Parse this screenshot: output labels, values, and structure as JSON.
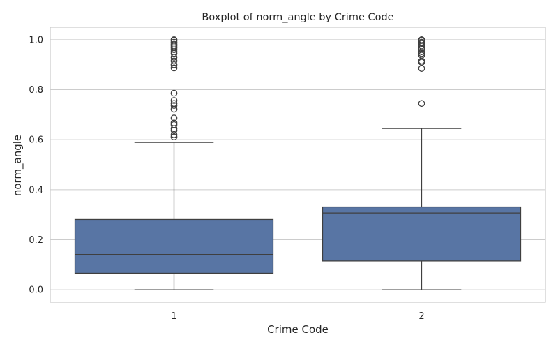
{
  "chart_data": {
    "type": "box",
    "title": "Boxplot of norm_angle by Crime Code",
    "xlabel": "Crime Code",
    "ylabel": "norm_angle",
    "ylim": [
      -0.05,
      1.05
    ],
    "yticks": [
      0.0,
      0.2,
      0.4,
      0.6,
      0.8,
      1.0
    ],
    "ytick_labels": [
      "0.0",
      "0.2",
      "0.4",
      "0.6",
      "0.8",
      "1.0"
    ],
    "categories": [
      "1",
      "2"
    ],
    "grid": true,
    "box_color": "#5875a4",
    "line_color": "#3f3f3f",
    "boxes": [
      {
        "category": "1",
        "whisker_low": 0.0,
        "q1": 0.066,
        "median": 0.141,
        "q3": 0.281,
        "whisker_high": 0.589,
        "outliers": [
          0.611,
          0.62,
          0.637,
          0.645,
          0.66,
          0.667,
          0.687,
          0.722,
          0.737,
          0.745,
          0.757,
          0.786,
          0.887,
          0.9,
          0.915,
          0.93,
          0.945,
          0.952,
          0.96,
          0.968,
          0.975,
          0.982,
          0.99,
          0.997,
          1.0
        ]
      },
      {
        "category": "2",
        "whisker_low": 0.0,
        "q1": 0.115,
        "median": 0.307,
        "q3": 0.331,
        "whisker_high": 0.645,
        "outliers": [
          0.745,
          0.885,
          0.91,
          0.915,
          0.938,
          0.945,
          0.952,
          0.965,
          0.975,
          0.985,
          0.99,
          0.997,
          1.0
        ]
      }
    ]
  }
}
